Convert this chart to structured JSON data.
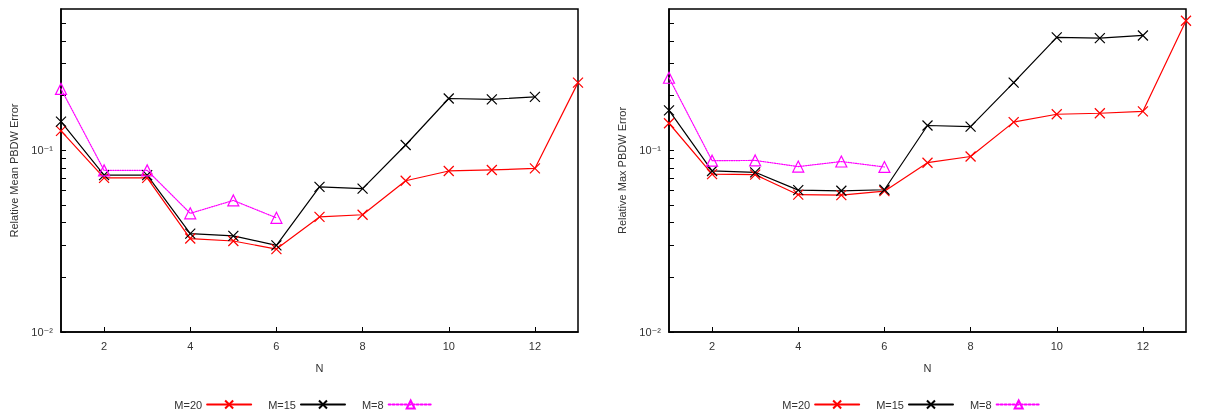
{
  "chart_data": [
    {
      "type": "line",
      "xlabel": "N",
      "ylabel": "Relative Mean PBDW Error",
      "x": [
        1,
        2,
        3,
        4,
        5,
        6,
        7,
        8,
        9,
        10,
        11,
        12,
        13
      ],
      "xlim": [
        1,
        13
      ],
      "xticks": [
        2,
        4,
        6,
        8,
        10,
        12
      ],
      "ylim": [
        0.01,
        0.6
      ],
      "log": "y",
      "yticks": [
        {
          "value": 0.01,
          "label": "10⁻²"
        },
        {
          "value": 0.02,
          "label": null
        },
        {
          "value": 0.03,
          "label": null
        },
        {
          "value": 0.04,
          "label": null
        },
        {
          "value": 0.05,
          "label": null
        },
        {
          "value": 0.06,
          "label": null
        },
        {
          "value": 0.07,
          "label": null
        },
        {
          "value": 0.08,
          "label": null
        },
        {
          "value": 0.09,
          "label": null
        },
        {
          "value": 0.1,
          "label": "10⁻¹"
        },
        {
          "value": 0.2,
          "label": null
        },
        {
          "value": 0.3,
          "label": null
        },
        {
          "value": 0.4,
          "label": null
        },
        {
          "value": 0.5,
          "label": null
        }
      ],
      "grid": false,
      "legend": "bottom",
      "series": [
        {
          "name": "M=20",
          "color": "#ff0000",
          "marker": "cross",
          "line_style": "solid",
          "values": [
            0.128,
            0.0706,
            0.0706,
            0.0327,
            0.0317,
            0.0286,
            0.043,
            0.0442,
            0.068,
            0.077,
            0.078,
            0.0795,
            0.236
          ]
        },
        {
          "name": "M=15",
          "color": "#000000",
          "marker": "cross",
          "line_style": "solid",
          "values": [
            0.144,
            0.073,
            0.073,
            0.0348,
            0.0338,
            0.03,
            0.063,
            0.0616,
            0.107,
            0.193,
            0.191,
            0.197,
            null
          ]
        },
        {
          "name": "M=8",
          "color": "#ff00ff",
          "marker": "triangle",
          "line_style": "dotted",
          "values": [
            0.218,
            0.0776,
            0.0776,
            0.045,
            0.053,
            0.0425,
            null,
            null,
            null,
            null,
            null,
            null,
            null
          ]
        }
      ]
    },
    {
      "type": "line",
      "xlabel": "N",
      "ylabel": "Relative Max PBDW Error",
      "x": [
        1,
        2,
        3,
        4,
        5,
        6,
        7,
        8,
        9,
        10,
        11,
        12,
        13
      ],
      "xlim": [
        1,
        13
      ],
      "xticks": [
        2,
        4,
        6,
        8,
        10,
        12
      ],
      "ylim": [
        0.01,
        0.6
      ],
      "log": "y",
      "yticks": [
        {
          "value": 0.01,
          "label": "10⁻²"
        },
        {
          "value": 0.02,
          "label": null
        },
        {
          "value": 0.03,
          "label": null
        },
        {
          "value": 0.04,
          "label": null
        },
        {
          "value": 0.05,
          "label": null
        },
        {
          "value": 0.06,
          "label": null
        },
        {
          "value": 0.07,
          "label": null
        },
        {
          "value": 0.08,
          "label": null
        },
        {
          "value": 0.09,
          "label": null
        },
        {
          "value": 0.1,
          "label": "10⁻¹"
        },
        {
          "value": 0.2,
          "label": null
        },
        {
          "value": 0.3,
          "label": null
        },
        {
          "value": 0.4,
          "label": null
        },
        {
          "value": 0.5,
          "label": null
        }
      ],
      "grid": false,
      "legend": "bottom",
      "series": [
        {
          "name": "M=20",
          "color": "#ff0000",
          "marker": "cross",
          "line_style": "solid",
          "values": [
            0.141,
            0.074,
            0.0735,
            0.057,
            0.0567,
            0.0596,
            0.0855,
            0.0925,
            0.143,
            0.158,
            0.16,
            0.164,
            0.517
          ]
        },
        {
          "name": "M=15",
          "color": "#000000",
          "marker": "cross",
          "line_style": "solid",
          "values": [
            0.166,
            0.077,
            0.0757,
            0.0604,
            0.0599,
            0.0607,
            0.137,
            0.135,
            0.236,
            0.419,
            0.415,
            0.429,
            null
          ]
        },
        {
          "name": "M=8",
          "color": "#ff00ff",
          "marker": "triangle",
          "line_style": "dotted",
          "values": [
            0.251,
            0.0877,
            0.088,
            0.0814,
            0.0868,
            0.081,
            null,
            null,
            null,
            null,
            null,
            null,
            null
          ]
        }
      ]
    }
  ]
}
